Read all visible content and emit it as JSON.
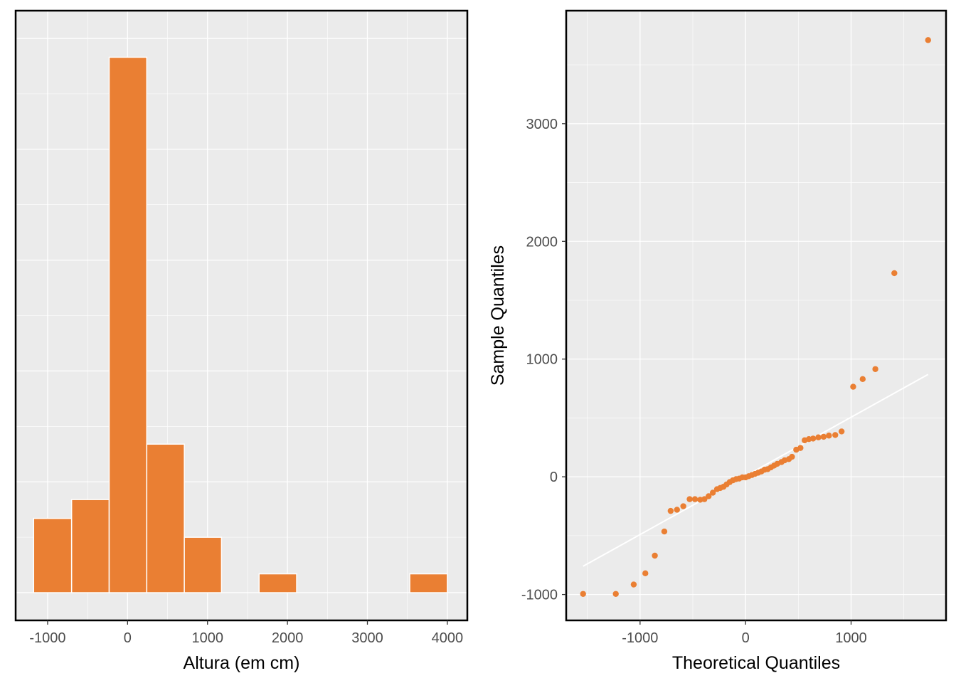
{
  "colors": {
    "accent": "#EA7F33",
    "panel_bg": "#EBEBEB",
    "grid": "#FFFFFF",
    "border": "#000000",
    "tick_text": "#4D4D4D"
  },
  "chart_data": [
    {
      "type": "bar",
      "subtype": "histogram",
      "title": "",
      "xlabel": "Altura (em cm)",
      "ylabel": "",
      "xlim": [
        -1400,
        4250
      ],
      "ylim": [
        -0.25,
        5.25
      ],
      "xticks": [
        -1000,
        0,
        1000,
        2000,
        3000,
        4000
      ],
      "xtick_labels": [
        "-1000",
        "0",
        "1000",
        "2000",
        "3000",
        "4000"
      ],
      "y_tick_labels_shown": false,
      "grid": true,
      "bins": [
        {
          "x0": -1175,
          "x1": -700,
          "count": 0.67
        },
        {
          "x0": -700,
          "x1": -230,
          "count": 0.84
        },
        {
          "x0": -230,
          "x1": 240,
          "count": 4.83
        },
        {
          "x0": 240,
          "x1": 710,
          "count": 1.34
        },
        {
          "x0": 710,
          "x1": 1175,
          "count": 0.5
        },
        {
          "x0": 1645,
          "x1": 2115,
          "count": 0.17
        },
        {
          "x0": 3530,
          "x1": 4000,
          "count": 0.17
        }
      ]
    },
    {
      "type": "scatter",
      "subtype": "qq-plot",
      "title": "",
      "xlabel": "Theoretical Quantiles",
      "ylabel": "Sample Quantiles",
      "xlim": [
        -1700,
        1900
      ],
      "ylim": [
        -1220,
        3960
      ],
      "xticks": [
        -1000,
        0,
        1000
      ],
      "xtick_labels": [
        "-1000",
        "0",
        "1000"
      ],
      "yticks": [
        -1000,
        0,
        1000,
        2000,
        3000
      ],
      "ytick_labels": [
        "-1000",
        "0",
        "1000",
        "2000",
        "3000"
      ],
      "grid": true,
      "reference_line": {
        "x": [
          -1540,
          1730
        ],
        "y": [
          -760,
          870
        ]
      },
      "points": [
        [
          -1540,
          -995
        ],
        [
          -1230,
          -995
        ],
        [
          -1060,
          -915
        ],
        [
          -950,
          -820
        ],
        [
          -860,
          -670
        ],
        [
          -770,
          -465
        ],
        [
          -710,
          -290
        ],
        [
          -650,
          -280
        ],
        [
          -590,
          -250
        ],
        [
          -530,
          -190
        ],
        [
          -480,
          -190
        ],
        [
          -430,
          -195
        ],
        [
          -390,
          -190
        ],
        [
          -350,
          -165
        ],
        [
          -310,
          -135
        ],
        [
          -270,
          -105
        ],
        [
          -240,
          -95
        ],
        [
          -210,
          -85
        ],
        [
          -180,
          -65
        ],
        [
          -150,
          -45
        ],
        [
          -120,
          -30
        ],
        [
          -90,
          -20
        ],
        [
          -60,
          -15
        ],
        [
          -30,
          -5
        ],
        [
          0,
          -5
        ],
        [
          30,
          5
        ],
        [
          60,
          15
        ],
        [
          90,
          25
        ],
        [
          120,
          35
        ],
        [
          150,
          45
        ],
        [
          180,
          60
        ],
        [
          210,
          65
        ],
        [
          240,
          80
        ],
        [
          270,
          95
        ],
        [
          300,
          110
        ],
        [
          340,
          125
        ],
        [
          370,
          140
        ],
        [
          410,
          150
        ],
        [
          440,
          170
        ],
        [
          480,
          230
        ],
        [
          520,
          245
        ],
        [
          560,
          310
        ],
        [
          600,
          320
        ],
        [
          640,
          325
        ],
        [
          690,
          335
        ],
        [
          740,
          340
        ],
        [
          790,
          350
        ],
        [
          850,
          355
        ],
        [
          910,
          385
        ],
        [
          1020,
          765
        ],
        [
          1110,
          830
        ],
        [
          1230,
          915
        ],
        [
          1410,
          1730
        ],
        [
          1730,
          3710
        ]
      ]
    }
  ]
}
